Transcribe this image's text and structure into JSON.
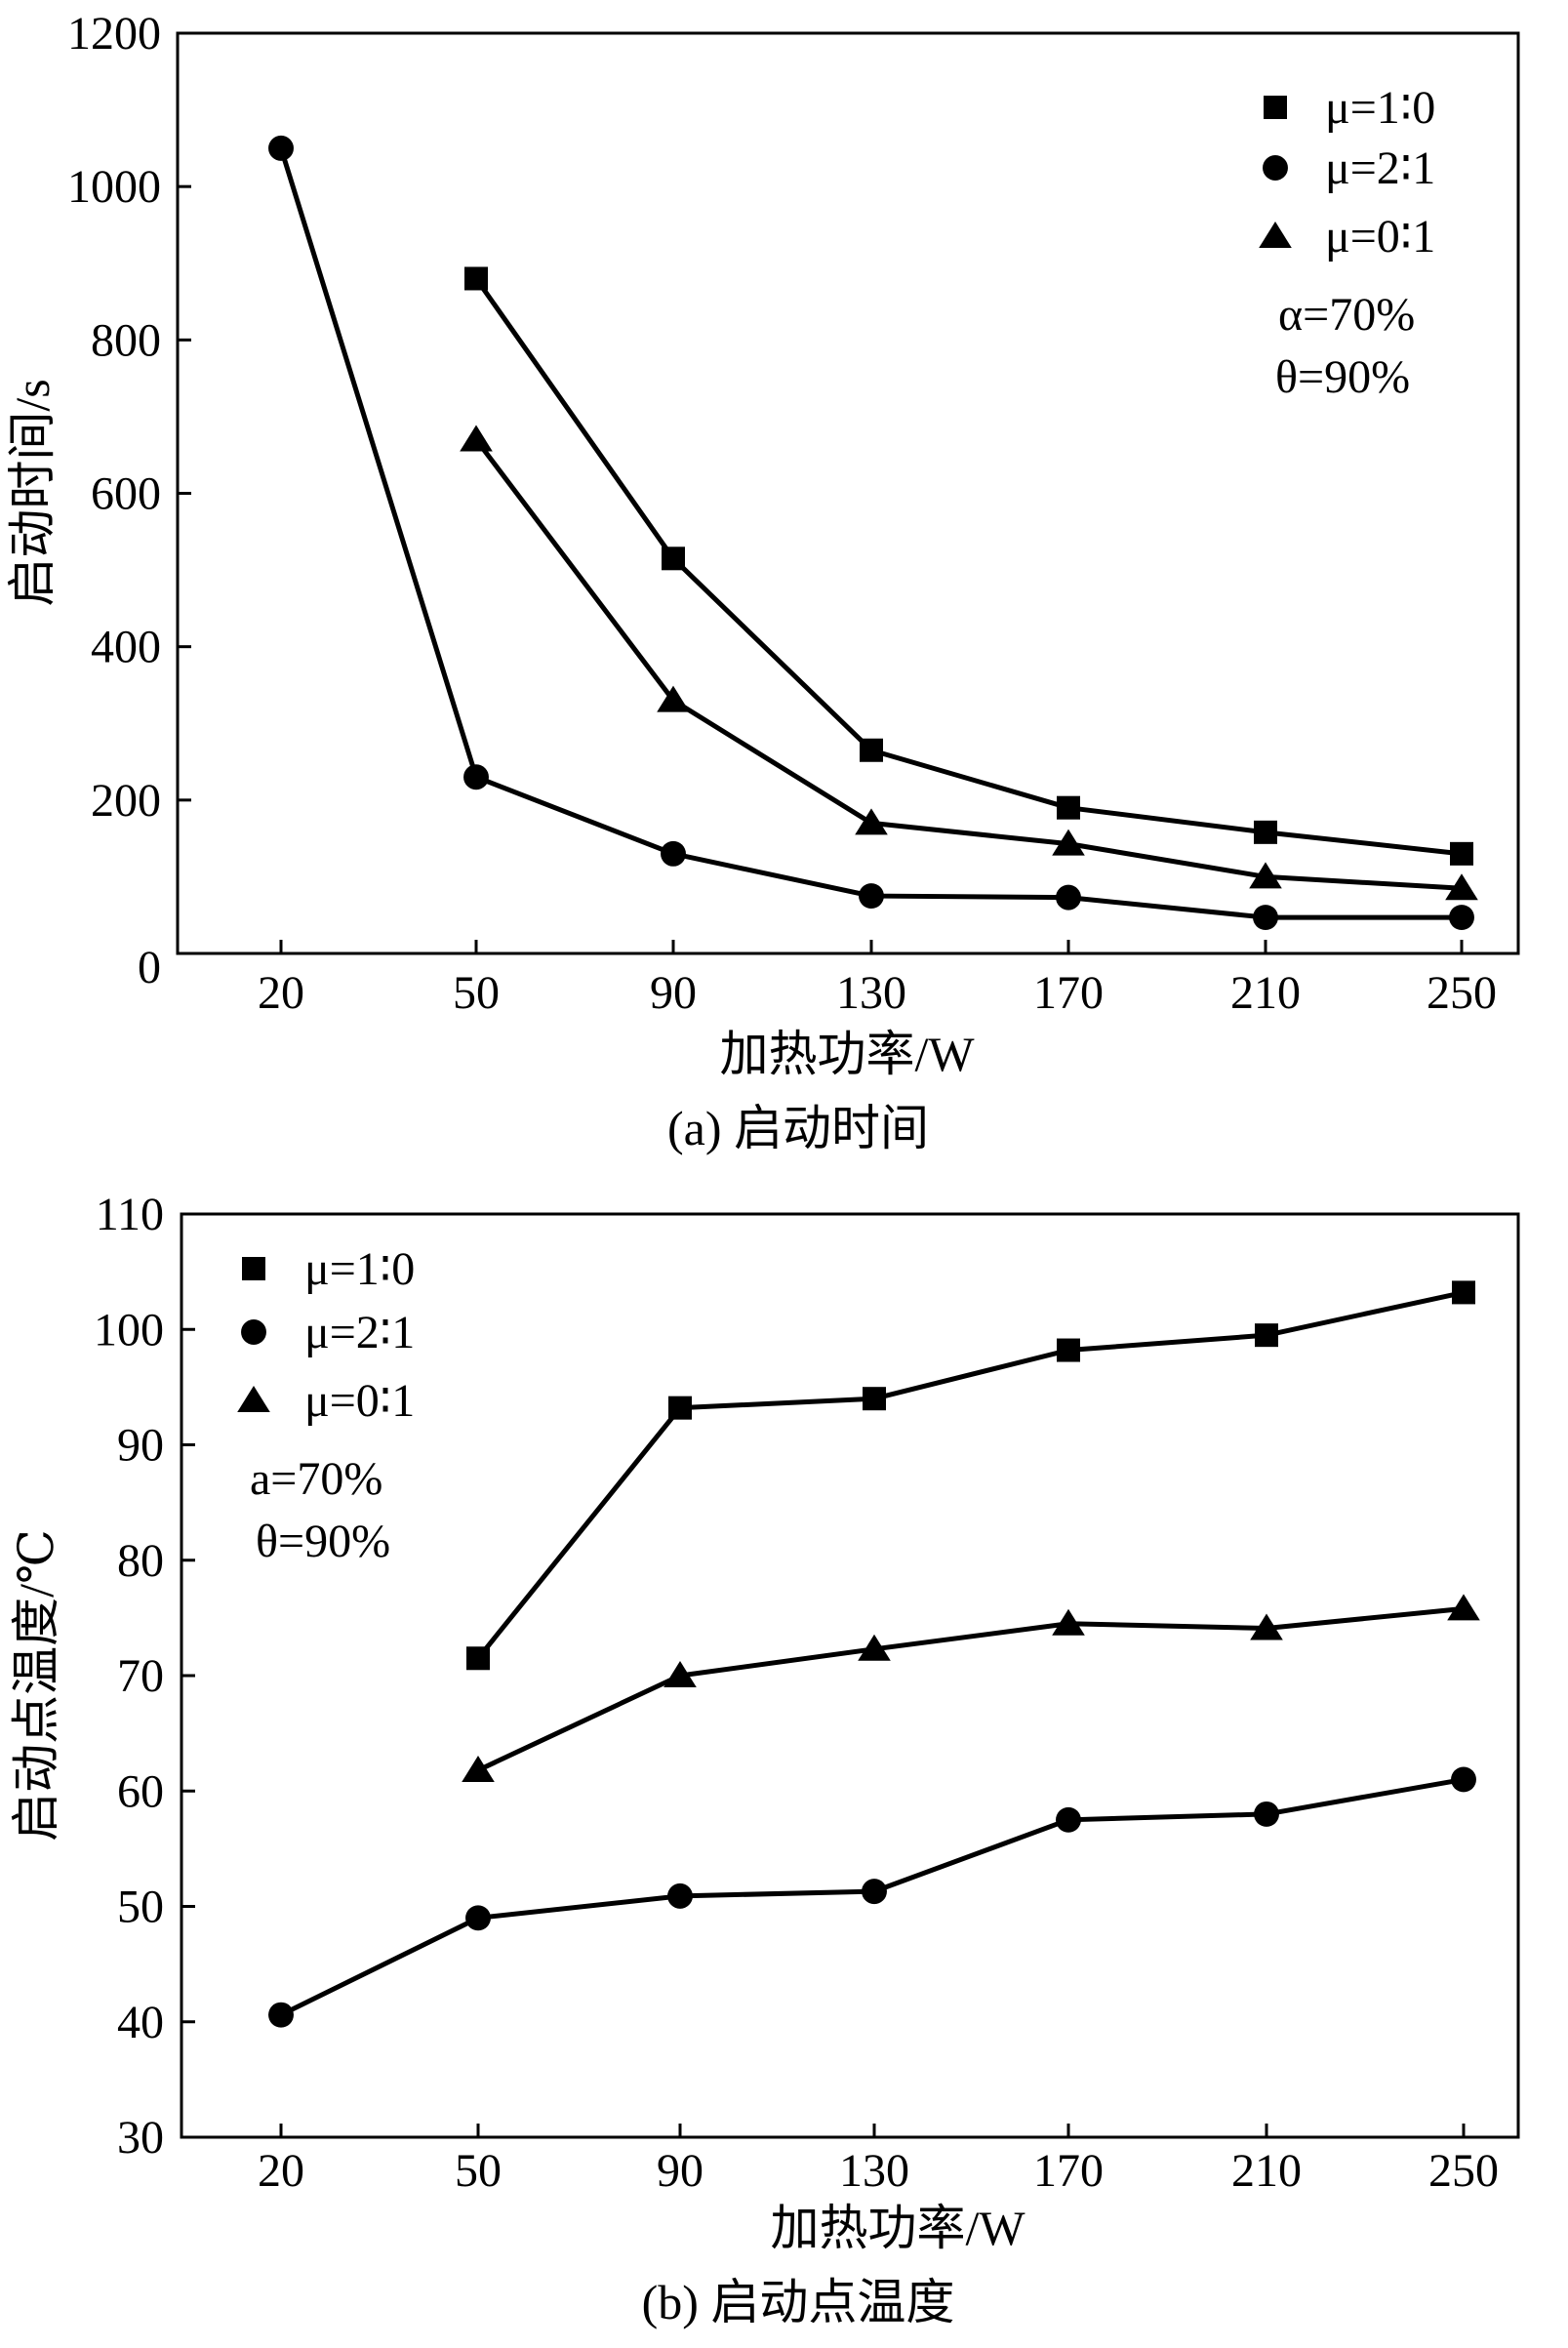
{
  "figure": {
    "colors": {
      "ink": "#000000",
      "background": "#ffffff"
    }
  },
  "chart_data": [
    {
      "type": "line",
      "panel": "a",
      "caption": "(a) 启动时间",
      "xlabel": "加热功率/W",
      "ylabel": "启动时间/s",
      "categories": [
        "20",
        "50",
        "90",
        "130",
        "170",
        "210",
        "250"
      ],
      "ylim": [
        0,
        1200
      ],
      "yticks": [
        "0",
        "200",
        "400",
        "600",
        "800",
        "1000",
        "1200"
      ],
      "grid": false,
      "legend_position": "top-right",
      "annotations": [
        "α=70%",
        "θ=90%"
      ],
      "series": [
        {
          "name": "μ=1∶0",
          "marker": "square",
          "values": [
            null,
            880,
            515,
            265,
            190,
            158,
            130
          ]
        },
        {
          "name": "μ=2∶1",
          "marker": "circle",
          "values": [
            1050,
            230,
            130,
            75,
            73,
            47,
            47
          ]
        },
        {
          "name": "μ=0∶1",
          "marker": "triangle",
          "values": [
            null,
            670,
            330,
            170,
            143,
            100,
            85
          ]
        }
      ]
    },
    {
      "type": "line",
      "panel": "b",
      "caption": "(b) 启动点温度",
      "xlabel": "加热功率/W",
      "ylabel": "启动点温度/℃",
      "categories": [
        "20",
        "50",
        "90",
        "130",
        "170",
        "210",
        "250"
      ],
      "ylim": [
        30,
        110
      ],
      "yticks": [
        "30",
        "40",
        "50",
        "60",
        "70",
        "80",
        "90",
        "100",
        "110"
      ],
      "grid": false,
      "legend_position": "top-left",
      "annotations": [
        "a=70%",
        "θ=90%"
      ],
      "series": [
        {
          "name": "μ=1∶0",
          "marker": "square",
          "values": [
            null,
            71.5,
            93.2,
            94,
            98.2,
            99.5,
            103.2
          ]
        },
        {
          "name": "μ=2∶1",
          "marker": "circle",
          "values": [
            40.6,
            49,
            50.9,
            51.3,
            57.5,
            58,
            61
          ]
        },
        {
          "name": "μ=0∶1",
          "marker": "triangle",
          "values": [
            null,
            61.8,
            70,
            72.3,
            74.5,
            74.1,
            75.8
          ]
        }
      ]
    }
  ]
}
